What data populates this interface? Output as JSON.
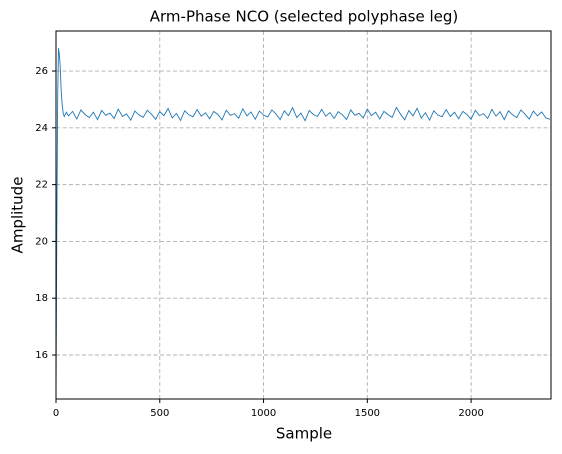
{
  "chart_data": {
    "type": "line",
    "title": "Arm-Phase NCO (selected polyphase leg)",
    "x_label": "Sample",
    "y_label": "Amplitude",
    "x": [
      0,
      4,
      8,
      12,
      16,
      20,
      25,
      30,
      35,
      40,
      50,
      60,
      80,
      100,
      120,
      140,
      160,
      180,
      200,
      220,
      240,
      260,
      280,
      300,
      320,
      340,
      360,
      380,
      400,
      420,
      440,
      460,
      480,
      500,
      520,
      540,
      560,
      580,
      600,
      620,
      640,
      660,
      680,
      700,
      720,
      740,
      760,
      780,
      800,
      820,
      840,
      860,
      880,
      900,
      920,
      940,
      960,
      980,
      1000,
      1020,
      1040,
      1060,
      1080,
      1100,
      1120,
      1140,
      1160,
      1180,
      1200,
      1220,
      1240,
      1260,
      1280,
      1300,
      1320,
      1340,
      1360,
      1380,
      1400,
      1420,
      1440,
      1460,
      1480,
      1500,
      1520,
      1540,
      1560,
      1580,
      1600,
      1620,
      1640,
      1660,
      1680,
      1700,
      1720,
      1740,
      1760,
      1780,
      1800,
      1820,
      1840,
      1860,
      1880,
      1900,
      1920,
      1940,
      1960,
      1980,
      2000,
      2020,
      2040,
      2060,
      2080,
      2100,
      2120,
      2140,
      2160,
      2180,
      2200,
      2220,
      2240,
      2260,
      2280,
      2300,
      2320,
      2340,
      2360,
      2380
    ],
    "series": [
      {
        "name": "NCO",
        "color": "#1f77b4",
        "values": [
          14.5,
          20.5,
          25.0,
          26.8,
          26.6,
          26.2,
          25.3,
          24.8,
          24.5,
          24.4,
          24.55,
          24.42,
          24.58,
          24.31,
          24.63,
          24.47,
          24.36,
          24.55,
          24.29,
          24.61,
          24.44,
          24.52,
          24.33,
          24.66,
          24.4,
          24.49,
          24.27,
          24.59,
          24.45,
          24.37,
          24.62,
          24.48,
          24.3,
          24.57,
          24.43,
          24.68,
          24.35,
          24.51,
          24.26,
          24.6,
          24.46,
          24.39,
          24.64,
          24.41,
          24.53,
          24.32,
          24.58,
          24.47,
          24.28,
          24.62,
          24.44,
          24.5,
          24.34,
          24.67,
          24.42,
          24.56,
          24.3,
          24.59,
          24.45,
          24.38,
          24.63,
          24.49,
          24.29,
          24.6,
          24.43,
          24.71,
          24.36,
          24.52,
          24.25,
          24.61,
          24.47,
          24.4,
          24.65,
          24.41,
          24.54,
          24.33,
          24.57,
          24.46,
          24.29,
          24.63,
          24.44,
          24.51,
          24.35,
          24.66,
          24.43,
          24.55,
          24.31,
          24.58,
          24.46,
          24.37,
          24.72,
          24.48,
          24.28,
          24.61,
          24.42,
          24.69,
          24.34,
          24.53,
          24.27,
          24.6,
          24.45,
          24.39,
          24.64,
          24.4,
          24.55,
          24.32,
          24.58,
          24.47,
          24.3,
          24.62,
          24.43,
          24.5,
          24.33,
          24.65,
          24.41,
          24.57,
          24.29,
          24.6,
          24.46,
          24.36,
          24.63,
          24.48,
          24.31,
          24.59,
          24.42,
          24.56,
          24.35,
          24.3
        ]
      }
    ],
    "xlim": [
      0,
      2385
    ],
    "ylim": [
      14.45,
      27.41
    ],
    "xticks": [
      0,
      500,
      1000,
      1500,
      2000
    ],
    "yticks": [
      16,
      18,
      20,
      22,
      24,
      26
    ],
    "grid": true
  }
}
